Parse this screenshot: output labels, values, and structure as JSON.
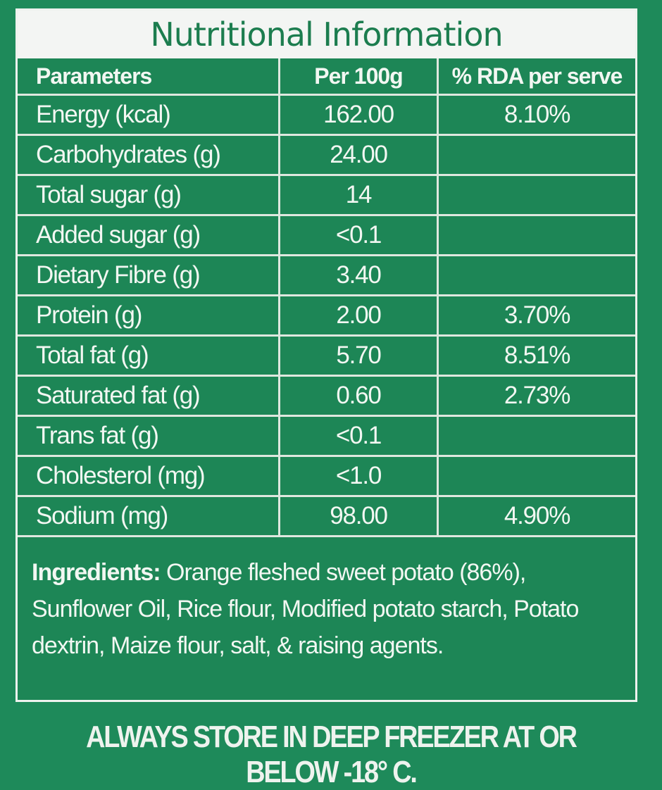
{
  "title": "Nutritional Information",
  "headers": [
    "Parameters",
    "Per 100g",
    "% RDA per serve"
  ],
  "rows": [
    [
      "Energy (kcal)",
      "162.00",
      "8.10%"
    ],
    [
      "Carbohydrates (g)",
      "24.00",
      ""
    ],
    [
      "Total sugar (g)",
      "14",
      ""
    ],
    [
      "Added sugar (g)",
      "<0.1",
      ""
    ],
    [
      "Dietary Fibre (g)",
      "3.40",
      ""
    ],
    [
      "Protein (g)",
      "2.00",
      "3.70%"
    ],
    [
      "Total fat (g)",
      "5.70",
      "8.51%"
    ],
    [
      "Saturated fat (g)",
      "0.60",
      "2.73%"
    ],
    [
      "Trans fat (g)",
      "<0.1",
      ""
    ],
    [
      "Cholesterol (mg)",
      "<1.0",
      ""
    ],
    [
      "Sodium (mg)",
      "98.00",
      "4.90%"
    ]
  ],
  "ingredients": {
    "label": "Ingredients:",
    "text": " Orange fleshed sweet potato (86%), Sunflower Oil, Rice flour, Modified potato starch, Potato dextrin, Maize flour, salt, & raising agents."
  },
  "storage_note": "ALWAYS STORE IN DEEP FREEZER AT OR BELOW -18° C.",
  "colors": {
    "background": "#1e8a5a",
    "title_text": "#1c7d4f",
    "title_band": "#f3f5f3"
  }
}
